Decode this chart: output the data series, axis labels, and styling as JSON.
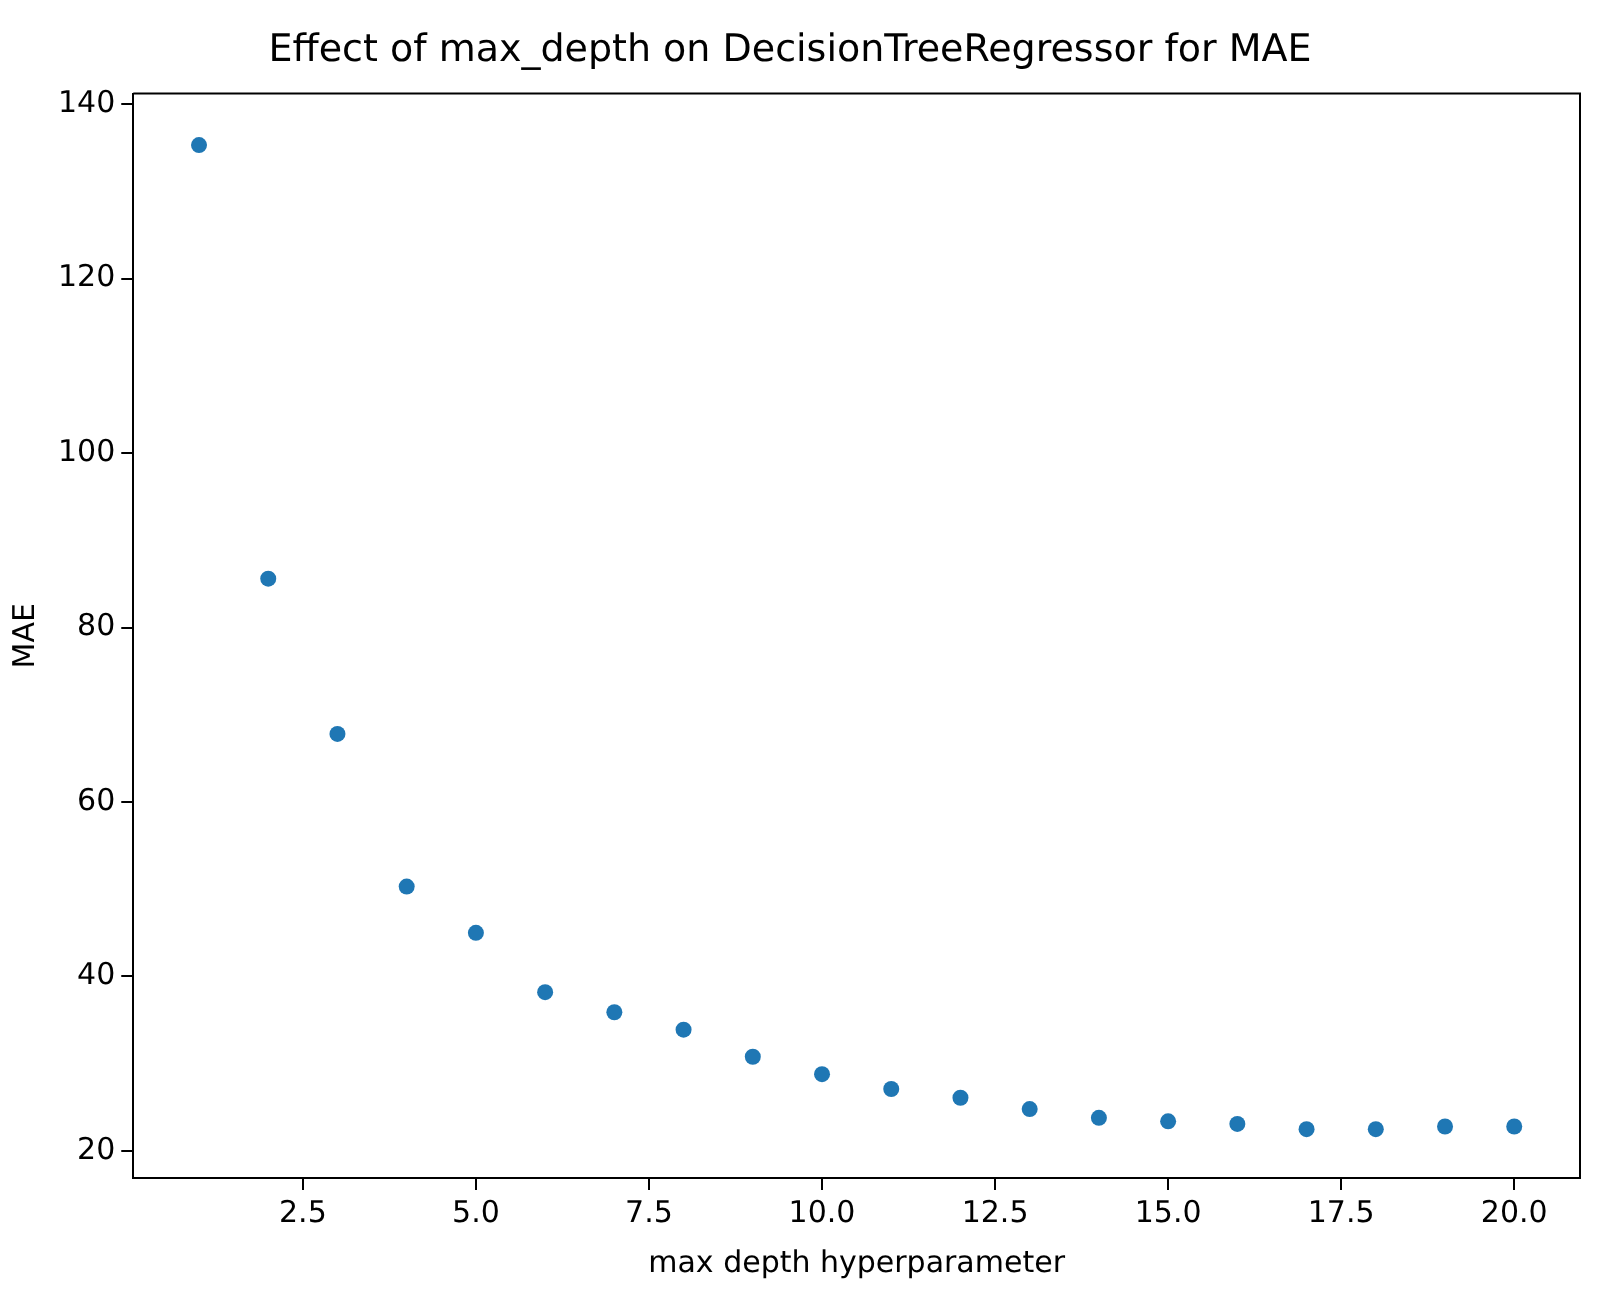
{
  "chart_data": {
    "type": "scatter",
    "title": "Effect of max_depth on DecisionTreeRegressor for MAE",
    "xlabel": "max depth hyperparameter",
    "ylabel": "MAE",
    "x": [
      1,
      2,
      3,
      4,
      5,
      6,
      7,
      8,
      9,
      10,
      11,
      12,
      13,
      14,
      15,
      16,
      17,
      18,
      19,
      20
    ],
    "series": [
      {
        "color": "#1f77b4",
        "values": [
          135.3,
          85.6,
          67.8,
          50.3,
          45.0,
          38.2,
          35.9,
          33.9,
          30.8,
          28.8,
          27.1,
          26.1,
          24.8,
          23.8,
          23.4,
          23.1,
          22.5,
          22.5,
          22.8,
          22.8
        ]
      }
    ],
    "xlim": [
      0.05,
      20.95
    ],
    "xticks": [
      {
        "value": 2.5,
        "label": "2.5"
      },
      {
        "value": 5,
        "label": "5.0"
      },
      {
        "value": 7.5,
        "label": "7.5"
      },
      {
        "value": 10,
        "label": "10.0"
      },
      {
        "value": 12.5,
        "label": "12.5"
      },
      {
        "value": 15,
        "label": "15.0"
      },
      {
        "value": 17.5,
        "label": "17.5"
      },
      {
        "value": 20,
        "label": "20.0"
      }
    ],
    "ylim": [
      16.9,
      141.2
    ],
    "yticks": [
      20,
      40,
      60,
      80,
      100,
      120,
      140
    ],
    "grid": false,
    "legend": false,
    "marker": "circle"
  }
}
